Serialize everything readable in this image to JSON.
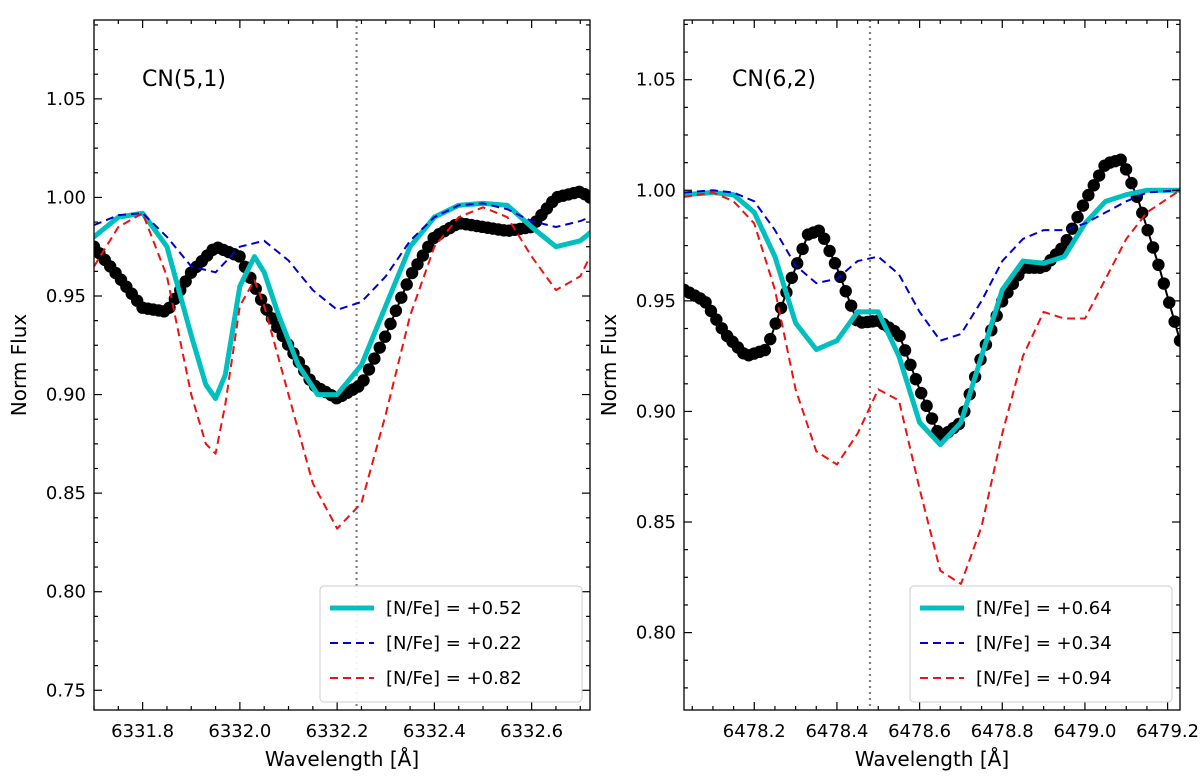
{
  "chart_data": [
    {
      "type": "line",
      "annotation": "CN(5,1)",
      "xlabel": "Wavelength [Å]",
      "ylabel": "Norm Flux",
      "xlim": [
        6331.7,
        6332.72
      ],
      "ylim": [
        0.74,
        1.09
      ],
      "xticks": [
        6331.8,
        6332.0,
        6332.2,
        6332.4,
        6332.6
      ],
      "xtick_labels": [
        "6331.8",
        "6332.0",
        "6332.2",
        "6332.4",
        "6332.6"
      ],
      "yticks": [
        0.75,
        0.8,
        0.85,
        0.9,
        0.95,
        1.0,
        1.05
      ],
      "ytick_labels": [
        "0.75",
        "0.80",
        "0.85",
        "0.90",
        "0.95",
        "1.00",
        "1.05"
      ],
      "vline_x": 6332.24,
      "legend_position": "lower-right",
      "observed": {
        "color": "#000000",
        "x": [
          6331.7,
          6331.75,
          6331.8,
          6331.85,
          6331.9,
          6331.95,
          6332.0,
          6332.05,
          6332.1,
          6332.15,
          6332.2,
          6332.25,
          6332.3,
          6332.35,
          6332.4,
          6332.45,
          6332.5,
          6332.55,
          6332.6,
          6332.65,
          6332.7,
          6332.72
        ],
        "y": [
          0.975,
          0.96,
          0.944,
          0.942,
          0.962,
          0.975,
          0.97,
          0.945,
          0.925,
          0.905,
          0.898,
          0.905,
          0.93,
          0.96,
          0.98,
          0.987,
          0.985,
          0.983,
          0.985,
          1.0,
          1.003,
          1.0
        ]
      },
      "series": [
        {
          "name": "[N/Fe] = +0.52",
          "color": "#00bfbf",
          "style": "solid",
          "x": [
            6331.7,
            6331.75,
            6331.8,
            6331.85,
            6331.9,
            6331.93,
            6331.95,
            6331.97,
            6332.0,
            6332.03,
            6332.05,
            6332.08,
            6332.12,
            6332.16,
            6332.2,
            6332.25,
            6332.3,
            6332.35,
            6332.4,
            6332.45,
            6332.5,
            6332.55,
            6332.6,
            6332.65,
            6332.7,
            6332.72
          ],
          "y": [
            0.98,
            0.99,
            0.992,
            0.975,
            0.93,
            0.905,
            0.898,
            0.91,
            0.955,
            0.97,
            0.962,
            0.94,
            0.915,
            0.9,
            0.9,
            0.915,
            0.945,
            0.975,
            0.99,
            0.996,
            0.997,
            0.996,
            0.985,
            0.975,
            0.978,
            0.982
          ]
        },
        {
          "name": "[N/Fe] = +0.22",
          "color": "#0000cc",
          "style": "dashed",
          "x": [
            6331.7,
            6331.75,
            6331.8,
            6331.85,
            6331.9,
            6331.95,
            6332.0,
            6332.05,
            6332.1,
            6332.15,
            6332.2,
            6332.25,
            6332.3,
            6332.35,
            6332.4,
            6332.45,
            6332.5,
            6332.55,
            6332.6,
            6332.65,
            6332.7,
            6332.72
          ],
          "y": [
            0.986,
            0.991,
            0.992,
            0.98,
            0.965,
            0.962,
            0.975,
            0.978,
            0.968,
            0.953,
            0.943,
            0.947,
            0.96,
            0.978,
            0.99,
            0.996,
            0.997,
            0.994,
            0.988,
            0.985,
            0.988,
            0.99
          ]
        },
        {
          "name": "[N/Fe] = +0.82",
          "color": "#ee1111",
          "style": "dashed",
          "x": [
            6331.7,
            6331.75,
            6331.8,
            6331.85,
            6331.9,
            6331.93,
            6331.95,
            6331.97,
            6332.0,
            6332.03,
            6332.05,
            6332.1,
            6332.15,
            6332.2,
            6332.25,
            6332.3,
            6332.35,
            6332.4,
            6332.45,
            6332.5,
            6332.55,
            6332.6,
            6332.65,
            6332.7,
            6332.72
          ],
          "y": [
            0.965,
            0.985,
            0.992,
            0.96,
            0.9,
            0.875,
            0.87,
            0.895,
            0.945,
            0.958,
            0.945,
            0.9,
            0.855,
            0.832,
            0.845,
            0.89,
            0.94,
            0.975,
            0.99,
            0.995,
            0.99,
            0.97,
            0.953,
            0.96,
            0.97
          ]
        }
      ]
    },
    {
      "type": "line",
      "annotation": "CN(6,2)",
      "xlabel": "Wavelength [Å]",
      "ylabel": "Norm Flux",
      "xlim": [
        6478.03,
        6479.23
      ],
      "ylim": [
        0.765,
        1.077
      ],
      "xticks": [
        6478.2,
        6478.4,
        6478.6,
        6478.8,
        6479.0,
        6479.2
      ],
      "xtick_labels": [
        "6478.2",
        "6478.4",
        "6478.6",
        "6478.8",
        "6479.0",
        "6479.2"
      ],
      "yticks": [
        0.8,
        0.85,
        0.9,
        0.95,
        1.0,
        1.05
      ],
      "ytick_labels": [
        "0.80",
        "0.85",
        "0.90",
        "0.95",
        "1.00",
        "1.05"
      ],
      "vline_x": 6478.48,
      "legend_position": "lower-right",
      "observed": {
        "color": "#000000",
        "x": [
          6478.03,
          6478.08,
          6478.13,
          6478.18,
          6478.23,
          6478.28,
          6478.33,
          6478.36,
          6478.4,
          6478.45,
          6478.5,
          6478.55,
          6478.6,
          6478.65,
          6478.7,
          6478.75,
          6478.8,
          6478.85,
          6478.9,
          6478.95,
          6479.0,
          6479.05,
          6479.09,
          6479.13,
          6479.18,
          6479.23
        ],
        "y": [
          0.955,
          0.95,
          0.935,
          0.925,
          0.928,
          0.955,
          0.98,
          0.982,
          0.965,
          0.94,
          0.941,
          0.935,
          0.91,
          0.888,
          0.895,
          0.925,
          0.95,
          0.965,
          0.965,
          0.975,
          0.995,
          1.012,
          1.014,
          0.995,
          0.965,
          0.932
        ]
      },
      "series": [
        {
          "name": "[N/Fe] = +0.64",
          "color": "#00bfbf",
          "style": "solid",
          "x": [
            6478.03,
            6478.1,
            6478.15,
            6478.2,
            6478.25,
            6478.3,
            6478.35,
            6478.4,
            6478.45,
            6478.5,
            6478.55,
            6478.6,
            6478.65,
            6478.7,
            6478.75,
            6478.8,
            6478.85,
            6478.9,
            6478.95,
            6479.0,
            6479.05,
            6479.1,
            6479.15,
            6479.23
          ],
          "y": [
            0.998,
            0.999,
            0.998,
            0.99,
            0.97,
            0.94,
            0.928,
            0.932,
            0.945,
            0.945,
            0.925,
            0.895,
            0.885,
            0.895,
            0.925,
            0.955,
            0.968,
            0.967,
            0.97,
            0.985,
            0.995,
            0.998,
            1.0,
            1.0
          ]
        },
        {
          "name": "[N/Fe] = +0.34",
          "color": "#0000cc",
          "style": "dashed",
          "x": [
            6478.03,
            6478.1,
            6478.15,
            6478.2,
            6478.25,
            6478.3,
            6478.35,
            6478.4,
            6478.45,
            6478.5,
            6478.55,
            6478.6,
            6478.65,
            6478.7,
            6478.75,
            6478.8,
            6478.85,
            6478.9,
            6478.95,
            6479.0,
            6479.05,
            6479.1,
            6479.15,
            6479.23
          ],
          "y": [
            0.999,
            1.0,
            0.999,
            0.995,
            0.982,
            0.966,
            0.958,
            0.96,
            0.968,
            0.97,
            0.962,
            0.945,
            0.932,
            0.935,
            0.95,
            0.968,
            0.978,
            0.982,
            0.982,
            0.985,
            0.99,
            0.995,
            0.999,
            1.0
          ]
        },
        {
          "name": "[N/Fe] = +0.94",
          "color": "#ee1111",
          "style": "dashed",
          "x": [
            6478.03,
            6478.1,
            6478.15,
            6478.2,
            6478.25,
            6478.3,
            6478.35,
            6478.4,
            6478.45,
            6478.5,
            6478.55,
            6478.6,
            6478.65,
            6478.7,
            6478.75,
            6478.8,
            6478.85,
            6478.9,
            6478.95,
            6479.0,
            6479.05,
            6479.1,
            6479.15,
            6479.23
          ],
          "y": [
            0.997,
            0.999,
            0.995,
            0.985,
            0.955,
            0.91,
            0.882,
            0.876,
            0.89,
            0.91,
            0.905,
            0.865,
            0.828,
            0.822,
            0.848,
            0.89,
            0.925,
            0.945,
            0.942,
            0.942,
            0.96,
            0.978,
            0.99,
            1.0
          ]
        }
      ]
    }
  ]
}
